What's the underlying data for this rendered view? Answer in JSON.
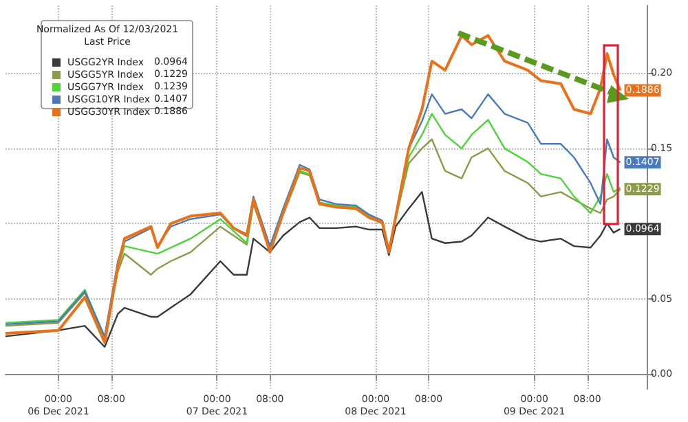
{
  "chart_data": {
    "type": "line",
    "legend_title": "Normalized As Of 12/03/2021",
    "x": [
      "2021-12-05T16:00",
      "2021-12-06T00:00",
      "2021-12-06T04:00",
      "2021-12-06T07:00",
      "2021-12-06T09:00",
      "2021-12-06T10:00",
      "2021-12-06T14:00",
      "2021-12-06T15:00",
      "2021-12-06T17:00",
      "2021-12-06T20:00",
      "2021-12-07T00:30",
      "2021-12-07T02:30",
      "2021-12-07T04:30",
      "2021-12-07T05:30",
      "2021-12-07T08:00",
      "2021-12-07T10:00",
      "2021-12-07T12:30",
      "2021-12-07T14:00",
      "2021-12-07T15:30",
      "2021-12-07T18:00",
      "2021-12-07T21:00",
      "2021-12-07T23:00",
      "2021-12-08T01:00",
      "2021-12-08T02:00",
      "2021-12-08T03:00",
      "2021-12-08T05:00",
      "2021-12-08T07:00",
      "2021-12-08T08:30",
      "2021-12-08T10:30",
      "2021-12-08T13:00",
      "2021-12-08T14:30",
      "2021-12-08T17:00",
      "2021-12-08T19:30",
      "2021-12-08T23:00",
      "2021-12-09T01:00",
      "2021-12-09T04:00",
      "2021-12-09T06:00",
      "2021-12-09T08:30",
      "2021-12-09T10:00",
      "2021-12-09T11:00",
      "2021-12-09T12:00",
      "2021-12-09T13:00"
    ],
    "series": [
      {
        "name": "USGG2YR Index",
        "color": "#3a3a3a",
        "values": [
          0.025,
          0.029,
          0.032,
          0.018,
          0.04,
          0.044,
          0.038,
          0.038,
          0.044,
          0.053,
          0.075,
          0.066,
          0.066,
          0.09,
          0.081,
          0.092,
          0.101,
          0.104,
          0.097,
          0.097,
          0.098,
          0.096,
          0.096,
          0.079,
          0.098,
          0.11,
          0.121,
          0.09,
          0.087,
          0.088,
          0.092,
          0.104,
          0.098,
          0.09,
          0.088,
          0.09,
          0.085,
          0.084,
          0.092,
          0.1,
          0.094,
          0.0964
        ],
        "value_labels": [
          null,
          null,
          null,
          null,
          null,
          null,
          null,
          null,
          null,
          null,
          null,
          null,
          null,
          null,
          null,
          null,
          null,
          null,
          null,
          null,
          null,
          null,
          null,
          null,
          null,
          null,
          null,
          null,
          null,
          null,
          null,
          null,
          null,
          null,
          null,
          null,
          null,
          null,
          null,
          null,
          null,
          "0.0964"
        ]
      },
      {
        "name": "USGG5YR Index",
        "color": "#8c9a4a",
        "values": [
          0.032,
          0.034,
          0.054,
          0.024,
          0.068,
          0.08,
          0.066,
          0.07,
          0.075,
          0.081,
          0.098,
          0.092,
          0.086,
          0.113,
          0.082,
          0.106,
          0.134,
          0.132,
          0.113,
          0.111,
          0.11,
          0.104,
          0.1,
          0.082,
          0.103,
          0.14,
          0.15,
          0.156,
          0.135,
          0.13,
          0.144,
          0.15,
          0.135,
          0.127,
          0.118,
          0.121,
          0.116,
          0.11,
          0.107,
          0.116,
          0.118,
          0.1229
        ],
        "value_labels": [
          null,
          null,
          null,
          null,
          null,
          null,
          null,
          null,
          null,
          null,
          null,
          null,
          null,
          null,
          null,
          null,
          null,
          null,
          null,
          null,
          null,
          null,
          null,
          null,
          null,
          null,
          null,
          null,
          null,
          null,
          null,
          null,
          null,
          null,
          null,
          null,
          null,
          null,
          null,
          null,
          null,
          "0.1229"
        ]
      },
      {
        "name": "USGG7YR Index",
        "color": "#4fd33a",
        "values": [
          0.034,
          0.036,
          0.056,
          0.024,
          0.07,
          0.085,
          0.081,
          0.08,
          0.084,
          0.09,
          0.103,
          0.095,
          0.087,
          0.115,
          0.083,
          0.108,
          0.135,
          0.133,
          0.114,
          0.112,
          0.111,
          0.105,
          0.101,
          0.082,
          0.103,
          0.144,
          0.159,
          0.173,
          0.159,
          0.15,
          0.159,
          0.169,
          0.15,
          0.141,
          0.133,
          0.13,
          0.118,
          0.107,
          0.118,
          0.133,
          0.121,
          0.1239
        ]
      },
      {
        "name": "USGG10YR Index",
        "color": "#4a7ab8",
        "values": [
          0.033,
          0.035,
          0.055,
          0.025,
          0.075,
          0.088,
          0.097,
          0.085,
          0.098,
          0.103,
          0.106,
          0.097,
          0.093,
          0.118,
          0.085,
          0.11,
          0.139,
          0.136,
          0.116,
          0.113,
          0.112,
          0.106,
          0.102,
          0.082,
          0.104,
          0.15,
          0.168,
          0.186,
          0.173,
          0.176,
          0.17,
          0.186,
          0.173,
          0.167,
          0.153,
          0.153,
          0.144,
          0.127,
          0.113,
          0.156,
          0.144,
          0.1407
        ],
        "value_labels": [
          null,
          null,
          null,
          null,
          null,
          null,
          null,
          null,
          null,
          null,
          null,
          null,
          null,
          null,
          null,
          null,
          null,
          null,
          null,
          null,
          null,
          null,
          null,
          null,
          null,
          null,
          null,
          null,
          null,
          null,
          null,
          null,
          null,
          null,
          null,
          null,
          null,
          null,
          null,
          null,
          null,
          "0.1407"
        ]
      },
      {
        "name": "USGG30YR Index",
        "color": "#e8721c",
        "values": [
          0.027,
          0.029,
          0.051,
          0.021,
          0.072,
          0.09,
          0.098,
          0.084,
          0.1,
          0.105,
          0.107,
          0.097,
          0.092,
          0.116,
          0.081,
          0.107,
          0.137,
          0.135,
          0.113,
          0.111,
          0.11,
          0.104,
          0.101,
          0.081,
          0.104,
          0.15,
          0.176,
          0.208,
          0.202,
          0.225,
          0.219,
          0.225,
          0.208,
          0.202,
          0.195,
          0.193,
          0.176,
          0.173,
          0.19,
          0.213,
          0.199,
          0.1886
        ],
        "value_labels": [
          null,
          null,
          null,
          null,
          null,
          null,
          null,
          null,
          null,
          null,
          null,
          null,
          null,
          null,
          null,
          null,
          null,
          null,
          null,
          null,
          null,
          null,
          null,
          null,
          null,
          null,
          null,
          null,
          null,
          null,
          null,
          null,
          null,
          null,
          null,
          null,
          null,
          null,
          null,
          null,
          null,
          "0.1886"
        ]
      }
    ],
    "annotations": [
      "Last Price",
      "0.0964",
      "0.1229",
      "0.1239",
      "0.1407",
      "0.1886"
    ],
    "xlim": [
      "2021-12-05T16:00",
      "2021-12-09T17:00"
    ],
    "xticks": [
      {
        "value": "2021-12-06T00:00",
        "label": "00:00\n06 Dec 2021"
      },
      {
        "value": "2021-12-06T08:00",
        "label": "08:00"
      },
      {
        "value": "2021-12-07T00:00",
        "label": "00:00\n07 Dec 2021"
      },
      {
        "value": "2021-12-07T08:00",
        "label": "08:00"
      },
      {
        "value": "2021-12-08T00:00",
        "label": "00:00\n08 Dec 2021"
      },
      {
        "value": "2021-12-08T08:00",
        "label": "08:00"
      },
      {
        "value": "2021-12-09T00:00",
        "label": "00:00\n09 Dec 2021"
      },
      {
        "value": "2021-12-09T08:00",
        "label": "08:00"
      }
    ],
    "ylim": [
      -0.01,
      0.245
    ],
    "yticks": [
      {
        "value": 0,
        "label": "0.00"
      },
      {
        "value": 0.05,
        "label": "0.05"
      },
      {
        "value": 0.1,
        "label": null
      },
      {
        "value": 0.15,
        "label": "0.15"
      },
      {
        "value": 0.2,
        "label": "0.20"
      }
    ],
    "grid": true,
    "legend": "top left",
    "marker": "none",
    "line_style": "solid"
  }
}
